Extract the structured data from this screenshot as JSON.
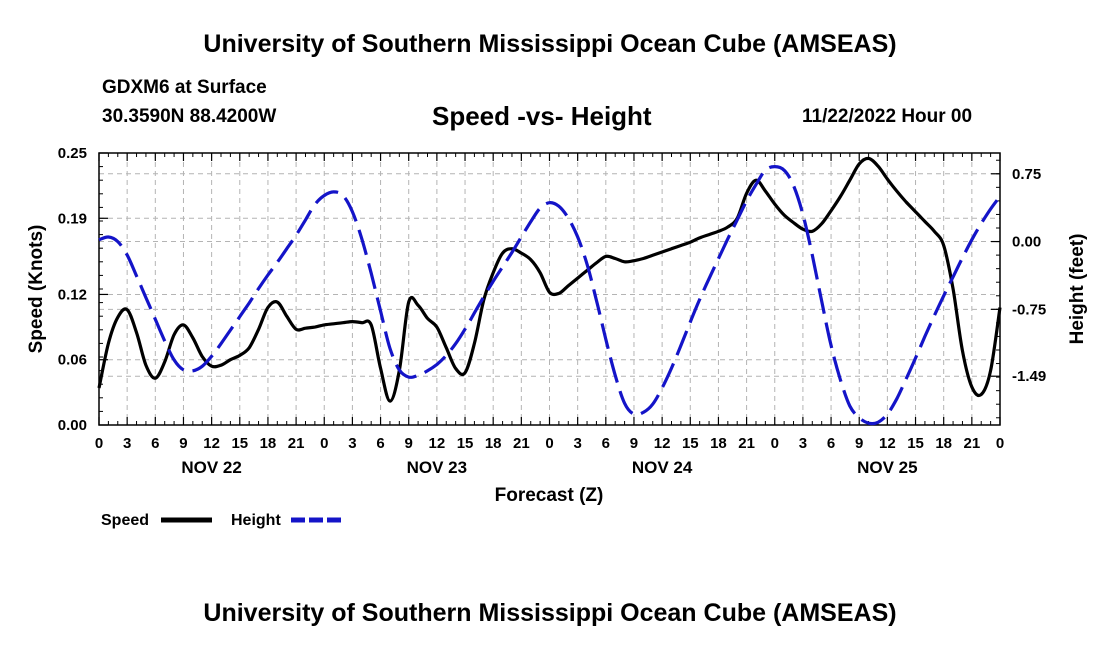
{
  "header": {
    "title": "University of Southern Mississippi Ocean Cube (AMSEAS)",
    "station": "GDXM6 at Surface",
    "coords": "30.3590N  88.4200W",
    "date": "11/22/2022 Hour 00"
  },
  "footer": {
    "title": "University of Southern Mississippi Ocean Cube (AMSEAS)"
  },
  "colors": {
    "speed": "#000000",
    "height": "#1414c8",
    "grid": "#b4b4b4"
  },
  "chart_data": {
    "type": "line",
    "title": "Speed -vs- Height",
    "xlabel": "Forecast (Z)",
    "ylabel": "Speed (Knots)",
    "y2label": "Height (feet)",
    "x_range_hours": [
      0,
      96
    ],
    "ylim": [
      0,
      0.25
    ],
    "y2lim": [
      -2.03,
      0.98
    ],
    "y_ticks": [
      0.0,
      0.06,
      0.12,
      0.19,
      0.25
    ],
    "y_tick_labels": [
      "0.00",
      "0.06",
      "0.12",
      "0.19",
      "0.25"
    ],
    "y2_ticks": [
      0.75,
      0.0,
      -0.75,
      -1.49
    ],
    "y2_tick_labels": [
      "0.75",
      "0.00",
      "-0.75",
      "-1.49"
    ],
    "x_tick_labels": [
      "0",
      "3",
      "6",
      "9",
      "12",
      "15",
      "18",
      "21",
      "0",
      "3",
      "6",
      "9",
      "12",
      "15",
      "18",
      "21",
      "0",
      "3",
      "6",
      "9",
      "12",
      "15",
      "18",
      "21",
      "0",
      "3",
      "6",
      "9",
      "12",
      "15",
      "18",
      "21",
      "0"
    ],
    "day_labels": [
      {
        "hour": 12,
        "label": "NOV 22"
      },
      {
        "hour": 36,
        "label": "NOV 23"
      },
      {
        "hour": 60,
        "label": "NOV 24"
      },
      {
        "hour": 84,
        "label": "NOV 25"
      }
    ],
    "legend": [
      {
        "name": "Speed",
        "style": "solid"
      },
      {
        "name": "Height",
        "style": "dashed"
      }
    ],
    "series": [
      {
        "name": "Speed",
        "axis": "left",
        "style": "solid",
        "x": [
          0,
          1,
          2,
          3,
          4,
          5,
          6,
          7,
          8,
          9,
          10,
          11,
          12,
          13,
          14,
          15,
          16,
          17,
          18,
          19,
          20,
          21,
          22,
          23,
          24,
          25,
          26,
          27,
          28,
          29,
          30,
          31,
          32,
          33,
          34,
          35,
          36,
          37,
          38,
          39,
          40,
          41,
          42,
          43,
          44,
          45,
          46,
          47,
          48,
          49,
          50,
          51,
          52,
          53,
          54,
          55,
          56,
          57,
          58,
          59,
          60,
          61,
          62,
          63,
          64,
          65,
          66,
          67,
          68,
          69,
          70,
          71,
          72,
          73,
          74,
          75,
          76,
          77,
          78,
          79,
          80,
          81,
          82,
          83,
          84,
          85,
          86,
          87,
          88,
          89,
          90,
          91,
          92,
          93,
          94,
          95,
          96
        ],
        "values": [
          0.034,
          0.075,
          0.099,
          0.106,
          0.085,
          0.055,
          0.043,
          0.058,
          0.083,
          0.092,
          0.08,
          0.063,
          0.054,
          0.055,
          0.06,
          0.064,
          0.071,
          0.088,
          0.108,
          0.113,
          0.1,
          0.088,
          0.089,
          0.09,
          0.092,
          0.093,
          0.094,
          0.095,
          0.094,
          0.092,
          0.052,
          0.022,
          0.05,
          0.113,
          0.11,
          0.098,
          0.09,
          0.071,
          0.052,
          0.048,
          0.075,
          0.115,
          0.14,
          0.158,
          0.162,
          0.158,
          0.152,
          0.14,
          0.122,
          0.121,
          0.128,
          0.135,
          0.142,
          0.149,
          0.155,
          0.153,
          0.15,
          0.151,
          0.153,
          0.156,
          0.159,
          0.162,
          0.165,
          0.168,
          0.172,
          0.175,
          0.178,
          0.182,
          0.19,
          0.213,
          0.225,
          0.215,
          0.203,
          0.193,
          0.186,
          0.18,
          0.178,
          0.185,
          0.197,
          0.21,
          0.225,
          0.24,
          0.245,
          0.238,
          0.226,
          0.215,
          0.205,
          0.196,
          0.187,
          0.178,
          0.165,
          0.125,
          0.068,
          0.035,
          0.028,
          0.05,
          0.108
        ]
      },
      {
        "name": "Height",
        "axis": "right",
        "style": "dashed",
        "x": [
          0,
          1,
          2,
          3,
          4,
          5,
          6,
          7,
          8,
          9,
          10,
          11,
          12,
          13,
          14,
          15,
          16,
          17,
          18,
          19,
          20,
          21,
          22,
          23,
          24,
          25,
          26,
          27,
          28,
          29,
          30,
          31,
          32,
          33,
          34,
          35,
          36,
          37,
          38,
          39,
          40,
          41,
          42,
          43,
          44,
          45,
          46,
          47,
          48,
          49,
          50,
          51,
          52,
          53,
          54,
          55,
          56,
          57,
          58,
          59,
          60,
          61,
          62,
          63,
          64,
          65,
          66,
          67,
          68,
          69,
          70,
          71,
          72,
          73,
          74,
          75,
          76,
          77,
          78,
          79,
          80,
          81,
          82,
          83,
          84,
          85,
          86,
          87,
          88,
          89,
          90,
          91,
          92,
          93,
          94,
          95,
          96
        ],
        "values": [
          0.02,
          0.05,
          0.0,
          -0.15,
          -0.38,
          -0.62,
          -0.86,
          -1.1,
          -1.31,
          -1.42,
          -1.43,
          -1.38,
          -1.27,
          -1.13,
          -0.98,
          -0.83,
          -0.68,
          -0.52,
          -0.37,
          -0.23,
          -0.08,
          0.07,
          0.24,
          0.41,
          0.51,
          0.55,
          0.51,
          0.33,
          0.03,
          -0.35,
          -0.77,
          -1.18,
          -1.42,
          -1.5,
          -1.48,
          -1.43,
          -1.36,
          -1.26,
          -1.13,
          -0.97,
          -0.79,
          -0.61,
          -0.44,
          -0.28,
          -0.12,
          0.05,
          0.22,
          0.37,
          0.43,
          0.39,
          0.26,
          0.05,
          -0.25,
          -0.65,
          -1.08,
          -1.48,
          -1.79,
          -1.91,
          -1.89,
          -1.8,
          -1.62,
          -1.4,
          -1.15,
          -0.89,
          -0.64,
          -0.41,
          -0.19,
          0.03,
          0.24,
          0.45,
          0.63,
          0.79,
          0.83,
          0.79,
          0.62,
          0.3,
          -0.15,
          -0.66,
          -1.15,
          -1.53,
          -1.82,
          -1.95,
          -2.01,
          -2.0,
          -1.91,
          -1.74,
          -1.52,
          -1.29,
          -1.05,
          -0.82,
          -0.6,
          -0.39,
          -0.18,
          0.02,
          0.2,
          0.36,
          0.5
        ]
      }
    ]
  }
}
